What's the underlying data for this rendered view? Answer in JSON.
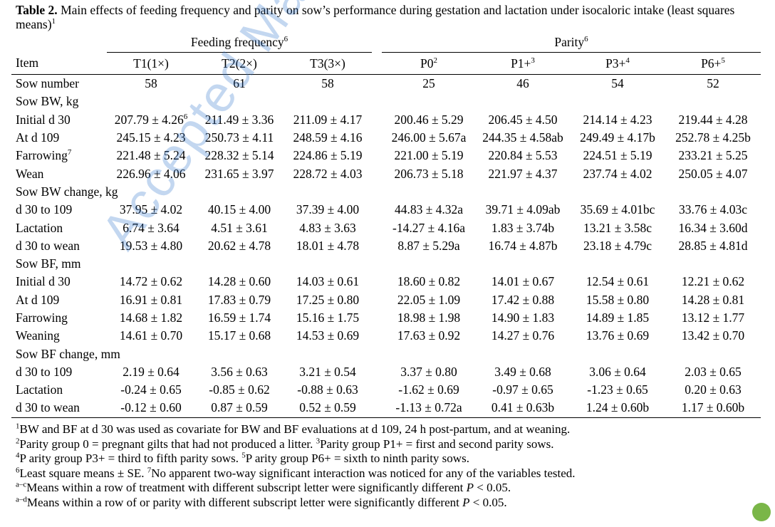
{
  "caption": {
    "label": "Table 2.",
    "text": "Main effects of feeding frequency and parity on sow’s performance during gestation and lactation under isocaloric intake (least squares means)",
    "sup": "1"
  },
  "groups": {
    "feeding": {
      "label": "Feeding frequency",
      "sup": "6"
    },
    "parity": {
      "label": "Parity",
      "sup": "6"
    }
  },
  "columns": {
    "item": "Item",
    "t1": "T1(1×)",
    "t2": "T2(2×)",
    "t3": "T3(3×)",
    "p0": "P0",
    "p0_sup": "2",
    "p1": "P1+",
    "p1_sup": "3",
    "p3": "P3+",
    "p3_sup": "4",
    "p6": "P6+",
    "p6_sup": "5"
  },
  "rows": [
    {
      "type": "data",
      "label": "Sow number",
      "v": [
        "58",
        "61",
        "58",
        "25",
        "46",
        "54",
        "52"
      ]
    },
    {
      "type": "section",
      "label": "Sow BW, kg"
    },
    {
      "type": "data",
      "label": "Initial d 30",
      "label_sup": "",
      "v": [
        "207.79 ± 4.26",
        "211.49 ± 3.36",
        "211.09 ± 4.17",
        "200.46 ± 5.29",
        "206.45 ± 4.50",
        "214.14 ± 4.23",
        "219.44 ± 4.28"
      ],
      "v0_sup": "6"
    },
    {
      "type": "data",
      "label": "At d 109",
      "v": [
        "245.15 ± 4.23",
        "250.73 ± 4.11",
        "248.59 ± 4.16",
        "246.00 ± 5.67a",
        "244.35 ± 4.58ab",
        "249.49 ± 4.17b",
        "252.78 ± 4.25b"
      ]
    },
    {
      "type": "data",
      "label": "Farrowing",
      "label_sup": "7",
      "v": [
        "221.48 ± 5.24",
        "228.32 ± 5.14",
        "224.86 ± 5.19",
        "221.00 ± 5.19",
        "220.84 ± 5.53",
        "224.51 ± 5.19",
        "233.21 ± 5.25"
      ]
    },
    {
      "type": "data",
      "label": "Wean",
      "v": [
        "226.96 ± 4.06",
        "231.65 ± 3.97",
        "228.72 ± 4.03",
        "206.73 ± 5.18",
        "221.97 ± 4.37",
        "237.74 ± 4.02",
        "250.05 ± 4.07"
      ]
    },
    {
      "type": "section",
      "label": "Sow BW change, kg"
    },
    {
      "type": "data",
      "label": "d 30 to 109",
      "v": [
        "37.95 ± 4.02",
        "40.15 ± 4.00",
        "37.39 ± 4.00",
        "44.83 ± 4.32a",
        "39.71 ± 4.09ab",
        "35.69 ± 4.01bc",
        "33.76 ± 4.03c"
      ]
    },
    {
      "type": "data",
      "label": "Lactation",
      "v": [
        "6.74 ± 3.64",
        "4.51 ± 3.61",
        "4.83 ± 3.63",
        "-14.27 ± 4.16a",
        "1.83 ± 3.74b",
        "13.21 ± 3.58c",
        "16.34 ± 3.60d"
      ]
    },
    {
      "type": "data",
      "label": "d 30 to wean",
      "v": [
        "19.53 ± 4.80",
        "20.62 ± 4.78",
        "18.01 ± 4.78",
        "8.87 ± 5.29a",
        "16.74 ± 4.87b",
        "23.18 ± 4.79c",
        "28.85 ± 4.81d"
      ]
    },
    {
      "type": "section",
      "label": "Sow BF, mm"
    },
    {
      "type": "data",
      "label": "Initial d 30",
      "v": [
        "14.72 ± 0.62",
        "14.28 ± 0.60",
        "14.03 ± 0.61",
        "18.60 ± 0.82",
        "14.01 ± 0.67",
        "12.54 ± 0.61",
        "12.21 ± 0.62"
      ]
    },
    {
      "type": "data",
      "label": "At d 109",
      "v": [
        "16.91 ± 0.81",
        "17.83 ± 0.79",
        "17.25 ± 0.80",
        "22.05 ± 1.09",
        "17.42 ± 0.88",
        "15.58 ± 0.80",
        "14.28 ± 0.81"
      ]
    },
    {
      "type": "data",
      "label": "Farrowing",
      "v": [
        "14.68 ± 1.82",
        "16.59 ± 1.74",
        "15.16 ± 1.75",
        "18.98 ± 1.98",
        "14.90 ± 1.83",
        "14.89 ± 1.85",
        "13.12 ± 1.77"
      ]
    },
    {
      "type": "data",
      "label": "Weaning",
      "v": [
        "14.61 ± 0.70",
        "15.17 ± 0.68",
        "14.53 ± 0.69",
        "17.63 ± 0.92",
        "14.27 ± 0.76",
        "13.76 ± 0.69",
        "13.42 ± 0.70"
      ]
    },
    {
      "type": "section",
      "label": "Sow BF change, mm"
    },
    {
      "type": "data",
      "label": "d 30 to 109",
      "v": [
        "2.19 ± 0.64",
        "3.56 ± 0.63",
        "3.21 ± 0.54",
        "3.37 ± 0.80",
        "3.49 ± 0.68",
        "3.06 ± 0.64",
        "2.03 ± 0.65"
      ]
    },
    {
      "type": "data",
      "label": "Lactation",
      "v": [
        "-0.24 ± 0.65",
        "-0.85 ± 0.62",
        "-0.88 ± 0.63",
        "-1.62 ± 0.69",
        "-0.97 ± 0.65",
        "-1.23 ± 0.65",
        "0.20 ± 0.63"
      ]
    },
    {
      "type": "data",
      "label": "d 30 to wean",
      "v": [
        "-0.12 ± 0.60",
        "0.87 ± 0.59",
        "0.52 ± 0.59",
        "-1.13 ± 0.72a",
        "0.41 ± 0.63b",
        "1.24 ± 0.60b",
        "1.17 ± 0.60b"
      ]
    }
  ],
  "notes": [
    {
      "sup": "1",
      "text": "BW and BF at d 30 was used as covariate for BW and BF evaluations at d 109, 24 h post-partum, and at weaning."
    },
    {
      "sup": "2",
      "text": "Parity group 0 = pregnant gilts that had not produced a litter. ",
      "sup2": "3",
      "text2": "Parity group P1+ = first and second parity sows."
    },
    {
      "sup": "4",
      "text": "P arity group P3+ = third to fifth parity sows. ",
      "sup2": "5",
      "text2": "P arity group P6+ = sixth to ninth parity sows."
    },
    {
      "sup": "6",
      "text": "Least square means ± SE. ",
      "sup2": "7",
      "text2": "No apparent two-way significant interaction was noticed for any of the variables tested."
    },
    {
      "sup": "a–c",
      "text": "Means within a row of treatment with different subscript letter were significantly different ",
      "italic": "P",
      "tail": " < 0.05."
    },
    {
      "sup": "a–d",
      "text": "Means within a row of or parity with different subscript letter were significantly different ",
      "italic": "P",
      "tail": " < 0.05."
    }
  ],
  "watermark": "Accepted Manuscript",
  "colors": {
    "watermark": "#286ec8",
    "badge": "#7ab648"
  }
}
